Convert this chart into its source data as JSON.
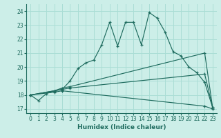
{
  "xlabel": "Humidex (Indice chaleur)",
  "bg_color": "#cceee8",
  "line_color": "#1e6b5e",
  "grid_color": "#aaddd5",
  "text_color": "#1e6b5e",
  "xlim": [
    -0.5,
    23.5
  ],
  "ylim": [
    16.7,
    24.5
  ],
  "xticks": [
    0,
    1,
    2,
    3,
    4,
    5,
    6,
    7,
    8,
    9,
    10,
    11,
    12,
    13,
    14,
    15,
    16,
    17,
    18,
    19,
    20,
    21,
    22,
    23
  ],
  "yticks": [
    17,
    18,
    19,
    20,
    21,
    22,
    23,
    24
  ],
  "lines": [
    {
      "x": [
        0,
        1,
        2,
        3,
        4,
        5,
        6,
        7,
        8,
        9,
        10,
        11,
        12,
        13,
        14,
        15,
        16,
        17,
        18,
        19,
        20,
        21,
        22,
        23
      ],
      "y": [
        18.0,
        17.6,
        18.1,
        18.3,
        18.4,
        19.0,
        19.9,
        20.3,
        20.5,
        21.6,
        23.2,
        21.5,
        23.2,
        23.2,
        21.6,
        23.9,
        23.5,
        22.5,
        21.1,
        20.8,
        20.0,
        19.6,
        18.9,
        17.1
      ]
    },
    {
      "x": [
        0,
        3,
        4,
        5,
        22,
        23
      ],
      "y": [
        18.0,
        18.3,
        18.5,
        18.6,
        21.0,
        17.1
      ]
    },
    {
      "x": [
        0,
        3,
        4,
        5,
        22,
        23
      ],
      "y": [
        18.0,
        18.3,
        18.4,
        18.5,
        19.5,
        17.1
      ]
    },
    {
      "x": [
        0,
        3,
        4,
        22,
        23
      ],
      "y": [
        18.0,
        18.2,
        18.3,
        17.2,
        17.0
      ]
    }
  ]
}
